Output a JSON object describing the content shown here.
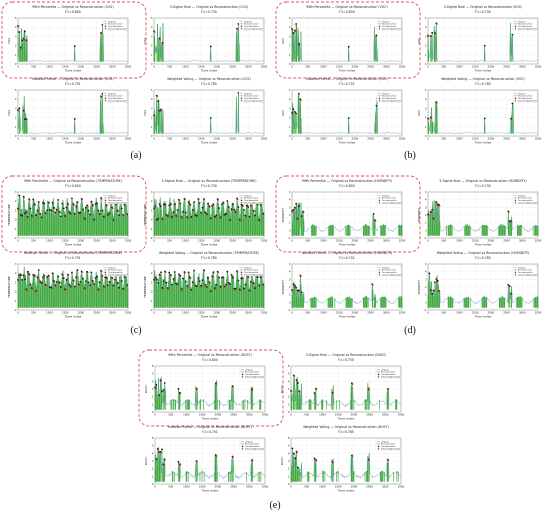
{
  "chart_data": [
    {
      "panel": "(a)",
      "type": "line",
      "ylabel": "CO2",
      "xlabel": "Time Index",
      "xlim": [
        0,
        3500
      ],
      "ylim": [
        0,
        5
      ],
      "xticks": [
        0,
        500,
        1000,
        1500,
        2000,
        2500,
        3000,
        3500
      ],
      "legend": [
        "Original",
        "Reconstruction",
        "True Anomalies",
        "Detected Anomalies"
      ],
      "charts": [
        {
          "title": "99th Percentile — Original vs Reconstruction (CO2)",
          "subtitle": "F1=0.800",
          "highlighted": true
        },
        {
          "title": "3-Sigma Rule — Original vs Reconstruction (CO2)",
          "subtitle": "F1=0.730",
          "highlighted": false
        },
        {
          "title": "Isolation Forest — Original vs Reconstruction (CO2)",
          "subtitle": "F1=0.701",
          "highlighted": false
        },
        {
          "title": "Weighted Voting — Original vs Reconstruction (CO2)",
          "subtitle": "F1=0.785",
          "highlighted": false
        }
      ]
    },
    {
      "panel": "(b)",
      "type": "line",
      "ylabel": "VOC",
      "xlabel": "Time Index",
      "xlim": [
        0,
        3500
      ],
      "ylim": [
        0,
        5
      ],
      "xticks": [
        0,
        500,
        1000,
        1500,
        2000,
        2500,
        3000,
        3500
      ],
      "legend": [
        "Original",
        "Reconstruction",
        "True Anomalies",
        "Detected Anomalies"
      ],
      "charts": [
        {
          "title": "99th Percentile — Original vs Reconstruction (VOC)",
          "subtitle": "F1=0.800",
          "highlighted": true
        },
        {
          "title": "3-Sigma Rule — Original vs Reconstruction (VOC)",
          "subtitle": "F1=0.730",
          "highlighted": false
        },
        {
          "title": "Isolation Forest — Original vs Reconstruction (VOC)",
          "subtitle": "F1=0.701",
          "highlighted": false
        },
        {
          "title": "Weighted Voting — Original vs Reconstruction (VOC)",
          "subtitle": "F1=0.785",
          "highlighted": false
        }
      ]
    },
    {
      "panel": "(c)",
      "type": "line",
      "ylabel": "TEMPERATURE",
      "xlabel": "Time Index",
      "xlim": [
        0,
        3500
      ],
      "ylim": [
        -2,
        3
      ],
      "xticks": [
        0,
        500,
        1000,
        1500,
        2000,
        2500,
        3000,
        3500
      ],
      "legend": [
        "Original",
        "Reconstruction",
        "True Anomalies",
        "Detected Anomalies"
      ],
      "charts": [
        {
          "title": "99th Percentile — Original vs Reconstruction (TEMPERATURE)",
          "subtitle": "F1=0.800",
          "highlighted": true
        },
        {
          "title": "3-Sigma Rule — Original vs Reconstruction (TEMPERATURE)",
          "subtitle": "F1=0.730",
          "highlighted": false
        },
        {
          "title": "Isolation Forest — Original vs Reconstruction (TEMPERATURE)",
          "subtitle": "F1=0.701",
          "highlighted": false
        },
        {
          "title": "Weighted Voting — Original vs Reconstruction (TEMPERATURE)",
          "subtitle": "F1=0.785",
          "highlighted": false
        }
      ]
    },
    {
      "panel": "(d)",
      "type": "line",
      "ylabel": "HUMIDITY",
      "xlabel": "Time Index",
      "xlim": [
        0,
        3500
      ],
      "ylim": [
        -1,
        5
      ],
      "xticks": [
        0,
        500,
        1000,
        1500,
        2000,
        2500,
        3000,
        3500
      ],
      "legend": [
        "Original",
        "Reconstruction",
        "True Anomalies",
        "Detected Anomalies"
      ],
      "charts": [
        {
          "title": "99th Percentile — Original vs Reconstruction (HUMIDITY)",
          "subtitle": "F1=0.800",
          "highlighted": true
        },
        {
          "title": "3-Sigma Rule — Original vs Reconstruction (HUMIDITY)",
          "subtitle": "F1=0.730",
          "highlighted": false
        },
        {
          "title": "Isolation Forest — Original vs Reconstruction (HUMIDITY)",
          "subtitle": "F1=0.701",
          "highlighted": false
        },
        {
          "title": "Weighted Voting — Original vs Reconstruction (HUMIDITY)",
          "subtitle": "F1=0.785",
          "highlighted": false
        }
      ]
    },
    {
      "panel": "(e)",
      "type": "line",
      "ylabel": "DUST",
      "xlabel": "Time Index",
      "xlim": [
        0,
        3500
      ],
      "ylim": [
        0,
        6
      ],
      "xticks": [
        0,
        500,
        1000,
        1500,
        2000,
        2500,
        3000,
        3500
      ],
      "legend": [
        "Original",
        "Reconstruction",
        "True Anomalies",
        "Detected Anomalies"
      ],
      "charts": [
        {
          "title": "99th Percentile — Original vs Reconstruction (DUST)",
          "subtitle": "F1=0.800",
          "highlighted": true
        },
        {
          "title": "3-Sigma Rule — Original vs Reconstruction (DUST)",
          "subtitle": "F1=0.730",
          "highlighted": false
        },
        {
          "title": "Isolation Forest — Original vs Reconstruction (DUST)",
          "subtitle": "F1=0.701",
          "highlighted": false
        },
        {
          "title": "Weighted Voting — Original vs Reconstruction (DUST)",
          "subtitle": "F1=0.785",
          "highlighted": false
        }
      ]
    }
  ],
  "colors": {
    "original": "#7fa7cf",
    "reconstruction": "#2ca02c",
    "true_anomalies": "#1a1a1a",
    "detected_anomalies": "#d62728",
    "highlight": "#e05050"
  }
}
